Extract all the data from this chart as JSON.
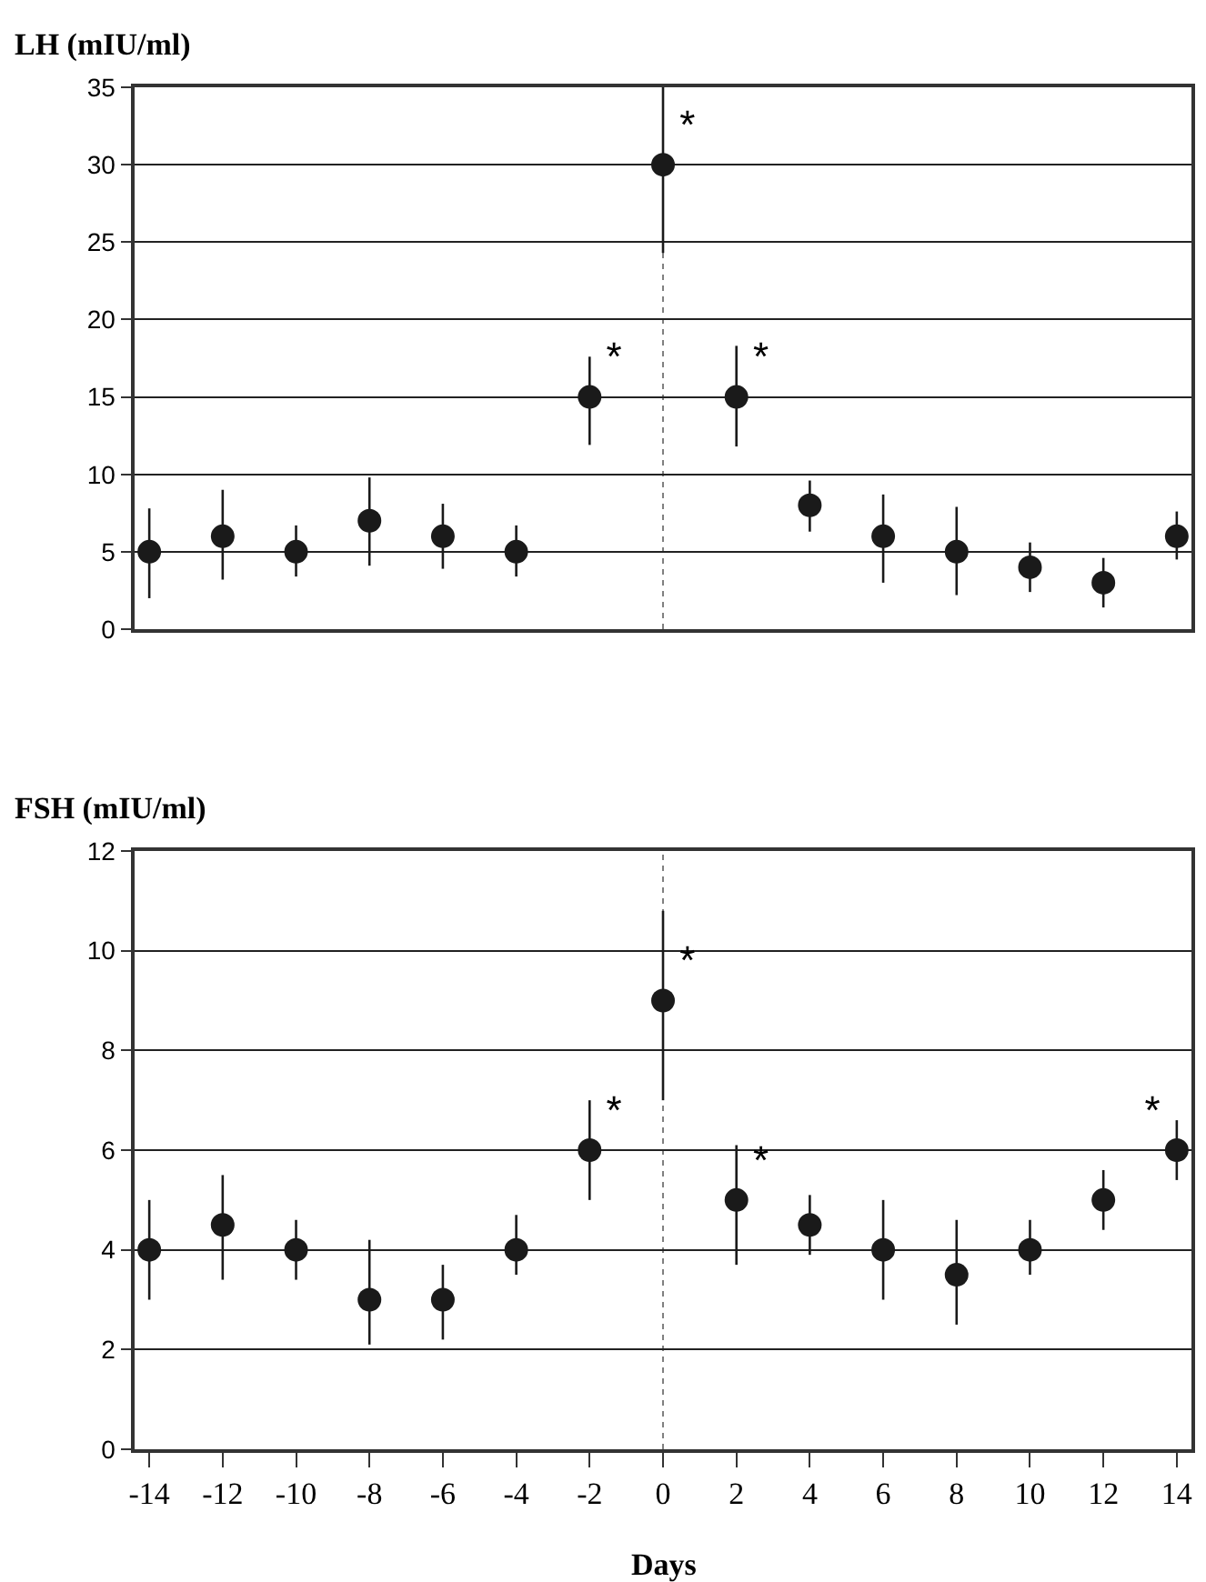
{
  "chart_data": [
    {
      "type": "scatter",
      "ylabel": "LH (mIU/ml)",
      "x": [
        -14,
        -12,
        -10,
        -8,
        -6,
        -4,
        -2,
        0,
        2,
        4,
        6,
        8,
        10,
        12,
        14
      ],
      "series": [
        {
          "color": "#1a1a1a",
          "values": [
            5,
            6,
            5,
            7,
            6,
            5,
            15,
            30,
            15,
            8,
            6,
            5,
            4,
            3,
            6
          ],
          "value_labels": [
            null,
            null,
            null,
            null,
            null,
            null,
            "*",
            "*",
            "*",
            null,
            null,
            null,
            null,
            null,
            null
          ],
          "errors": [
            [
              2,
              7.8
            ],
            [
              3.2,
              9
            ],
            [
              3.4,
              6.7
            ],
            [
              4.1,
              9.8
            ],
            [
              3.9,
              8.1
            ],
            [
              3.4,
              6.7
            ],
            [
              11.9,
              17.6
            ],
            [
              24.3,
              35
            ],
            [
              11.8,
              18.3
            ],
            [
              6.3,
              9.6
            ],
            [
              3,
              8.7
            ],
            [
              2.2,
              7.9
            ],
            [
              2.4,
              5.6
            ],
            [
              1.4,
              4.6
            ],
            [
              4.5,
              7.6
            ]
          ]
        }
      ],
      "marker": "circle",
      "xlim": [
        -14.4,
        14.4
      ],
      "ylim": [
        0,
        35
      ],
      "yticks": [
        0,
        5,
        10,
        15,
        20,
        25,
        30,
        35
      ],
      "grid": "y",
      "tick_labels": "y",
      "ref_lines": [
        {
          "axis": "x",
          "value": 0,
          "color": "#808080",
          "line_style": "dotted"
        }
      ]
    },
    {
      "type": "scatter",
      "ylabel": "FSH (mIU/ml)",
      "xlabel": "Days",
      "x": [
        -14,
        -12,
        -10,
        -8,
        -6,
        -4,
        -2,
        0,
        2,
        4,
        6,
        8,
        10,
        12,
        14
      ],
      "series": [
        {
          "color": "#1a1a1a",
          "values": [
            4,
            4.5,
            4,
            3,
            3,
            4,
            6,
            9,
            5,
            4.5,
            4,
            3.5,
            4,
            5,
            6
          ],
          "value_labels": [
            null,
            null,
            null,
            null,
            null,
            null,
            "*",
            "*",
            "*",
            null,
            null,
            null,
            null,
            null,
            "*"
          ],
          "errors": [
            [
              3,
              5
            ],
            [
              3.4,
              5.5
            ],
            [
              3.4,
              4.6
            ],
            [
              2.1,
              4.2
            ],
            [
              2.2,
              3.7
            ],
            [
              3.5,
              4.7
            ],
            [
              5,
              7
            ],
            [
              7,
              10.8
            ],
            [
              3.7,
              6.1
            ],
            [
              3.9,
              5.1
            ],
            [
              3,
              5
            ],
            [
              2.5,
              4.6
            ],
            [
              3.5,
              4.6
            ],
            [
              4.4,
              5.6
            ],
            [
              5.4,
              6.6
            ]
          ]
        }
      ],
      "marker": "circle",
      "xlim": [
        -14.4,
        14.4
      ],
      "xticks": [
        -14,
        -12,
        -10,
        -8,
        -6,
        -4,
        -2,
        0,
        2,
        4,
        6,
        8,
        10,
        12,
        14
      ],
      "ylim": [
        0,
        12
      ],
      "yticks": [
        0,
        2,
        4,
        6,
        8,
        10,
        12
      ],
      "grid": "y",
      "ref_lines": [
        {
          "axis": "x",
          "value": 0,
          "color": "#808080",
          "line_style": "dotted"
        }
      ]
    }
  ]
}
